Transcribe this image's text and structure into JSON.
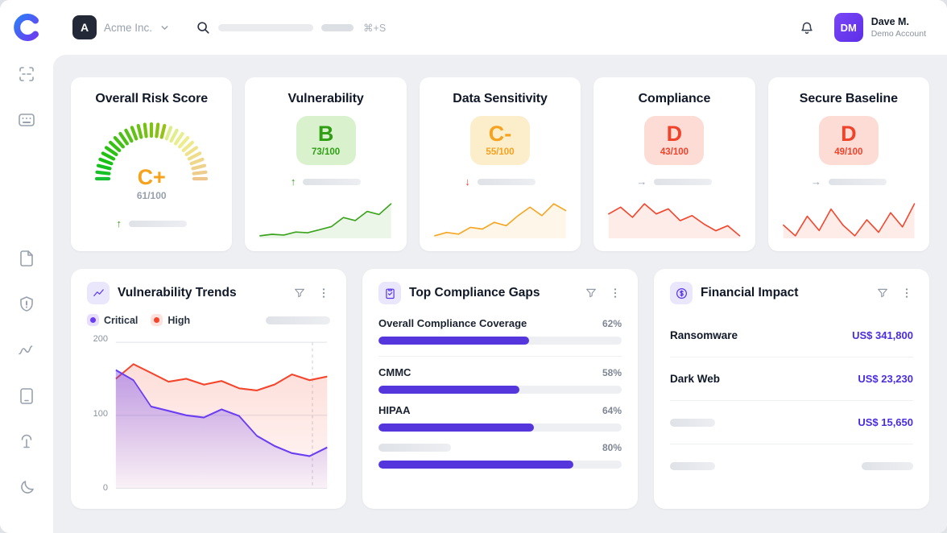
{
  "sidebar": {
    "icons": [
      "scan",
      "apps",
      "files",
      "security",
      "analytics",
      "reports",
      "integrations",
      "dark-mode"
    ]
  },
  "header": {
    "org": {
      "initial": "A",
      "name": "Acme Inc."
    },
    "search": {
      "shortcut": "⌘+S"
    },
    "user": {
      "initials": "DM",
      "name": "Dave M.",
      "account": "Demo Account"
    }
  },
  "score_cards": [
    {
      "title": "Overall Risk Score",
      "grade": "C+",
      "score": "61/100",
      "value": 61,
      "arrow": "↑",
      "trend": "up"
    },
    {
      "title": "Vulnerability",
      "grade": "B",
      "score": "73/100",
      "value": 73,
      "arrow": "↑",
      "trend": "up",
      "spark": [
        18,
        20,
        19,
        23,
        22,
        26,
        30,
        42,
        38,
        50,
        46,
        60
      ]
    },
    {
      "title": "Data Sensitivity",
      "grade": "C-",
      "score": "55/100",
      "value": 55,
      "arrow": "↓",
      "trend": "down",
      "spark": [
        28,
        30,
        29,
        33,
        32,
        36,
        34,
        40,
        45,
        40,
        47,
        43
      ]
    },
    {
      "title": "Compliance",
      "grade": "D",
      "score": "43/100",
      "value": 43,
      "arrow": "→",
      "trend": "flat",
      "spark": [
        46,
        50,
        44,
        52,
        46,
        49,
        42,
        45,
        40,
        36,
        39,
        33
      ]
    },
    {
      "title": "Secure Baseline",
      "grade": "D",
      "score": "49/100",
      "value": 49,
      "arrow": "→",
      "trend": "flat",
      "spark": [
        40,
        34,
        45,
        37,
        49,
        40,
        34,
        43,
        36,
        47,
        39,
        52
      ]
    }
  ],
  "trends_card": {
    "title": "Vulnerability Trends",
    "legend": [
      {
        "label": "Critical"
      },
      {
        "label": "High"
      }
    ],
    "y_ticks": [
      "200",
      "100",
      "0"
    ]
  },
  "gaps_card": {
    "title": "Top Compliance Gaps",
    "items": [
      {
        "label": "Overall Compliance Coverage",
        "pct": "62%",
        "value": 62
      },
      {
        "label": "CMMC",
        "pct": "58%",
        "value": 58
      },
      {
        "label": "HIPAA",
        "pct": "64%",
        "value": 64
      },
      {
        "label": null,
        "pct": "80%",
        "value": 80
      }
    ]
  },
  "financial_card": {
    "title": "Financial Impact",
    "rows": [
      {
        "label": "Ransomware",
        "value": "US$ 341,800"
      },
      {
        "label": "Dark Web",
        "value": "US$ 23,230"
      },
      {
        "label": null,
        "value": "US$ 15,650"
      },
      {
        "label": null,
        "value": null
      }
    ]
  },
  "chart_data": [
    {
      "id": "vulnerability_trends",
      "type": "area",
      "title": "Vulnerability Trends",
      "x": [
        0,
        1,
        2,
        3,
        4,
        5,
        6,
        7,
        8,
        9,
        10,
        11,
        12
      ],
      "series": [
        {
          "name": "Critical",
          "color": "#6a3df2",
          "values": [
            162,
            148,
            112,
            106,
            100,
            97,
            108,
            99,
            72,
            58,
            48,
            44,
            56
          ]
        },
        {
          "name": "High",
          "color": "#f4452c",
          "values": [
            150,
            170,
            158,
            146,
            150,
            142,
            147,
            137,
            134,
            142,
            156,
            148,
            153
          ]
        }
      ],
      "ylim": [
        0,
        200
      ],
      "y_ticks": [
        200,
        100,
        0
      ],
      "grid": true,
      "legend_position": "top-left"
    },
    {
      "id": "top_compliance_gaps",
      "type": "bar",
      "title": "Top Compliance Gaps",
      "categories": [
        "Overall Compliance Coverage",
        "CMMC",
        "HIPAA",
        null
      ],
      "values": [
        62,
        58,
        64,
        80
      ],
      "unit": "%",
      "xlim": [
        0,
        100
      ]
    },
    {
      "id": "financial_impact",
      "type": "table",
      "title": "Financial Impact",
      "rows": [
        [
          "Ransomware",
          "US$ 341,800"
        ],
        [
          "Dark Web",
          "US$ 23,230"
        ],
        [
          null,
          "US$ 15,650"
        ],
        [
          null,
          null
        ]
      ]
    }
  ],
  "colors": {
    "accent": "#5a3bf0",
    "bar_fill": "#5535dc",
    "value_text": "#4a2de0",
    "green": "#2f9e15",
    "amber": "#f5a21f",
    "red": "#f0432c",
    "critical_series": "#6a3df2",
    "high_series": "#f4452c"
  }
}
